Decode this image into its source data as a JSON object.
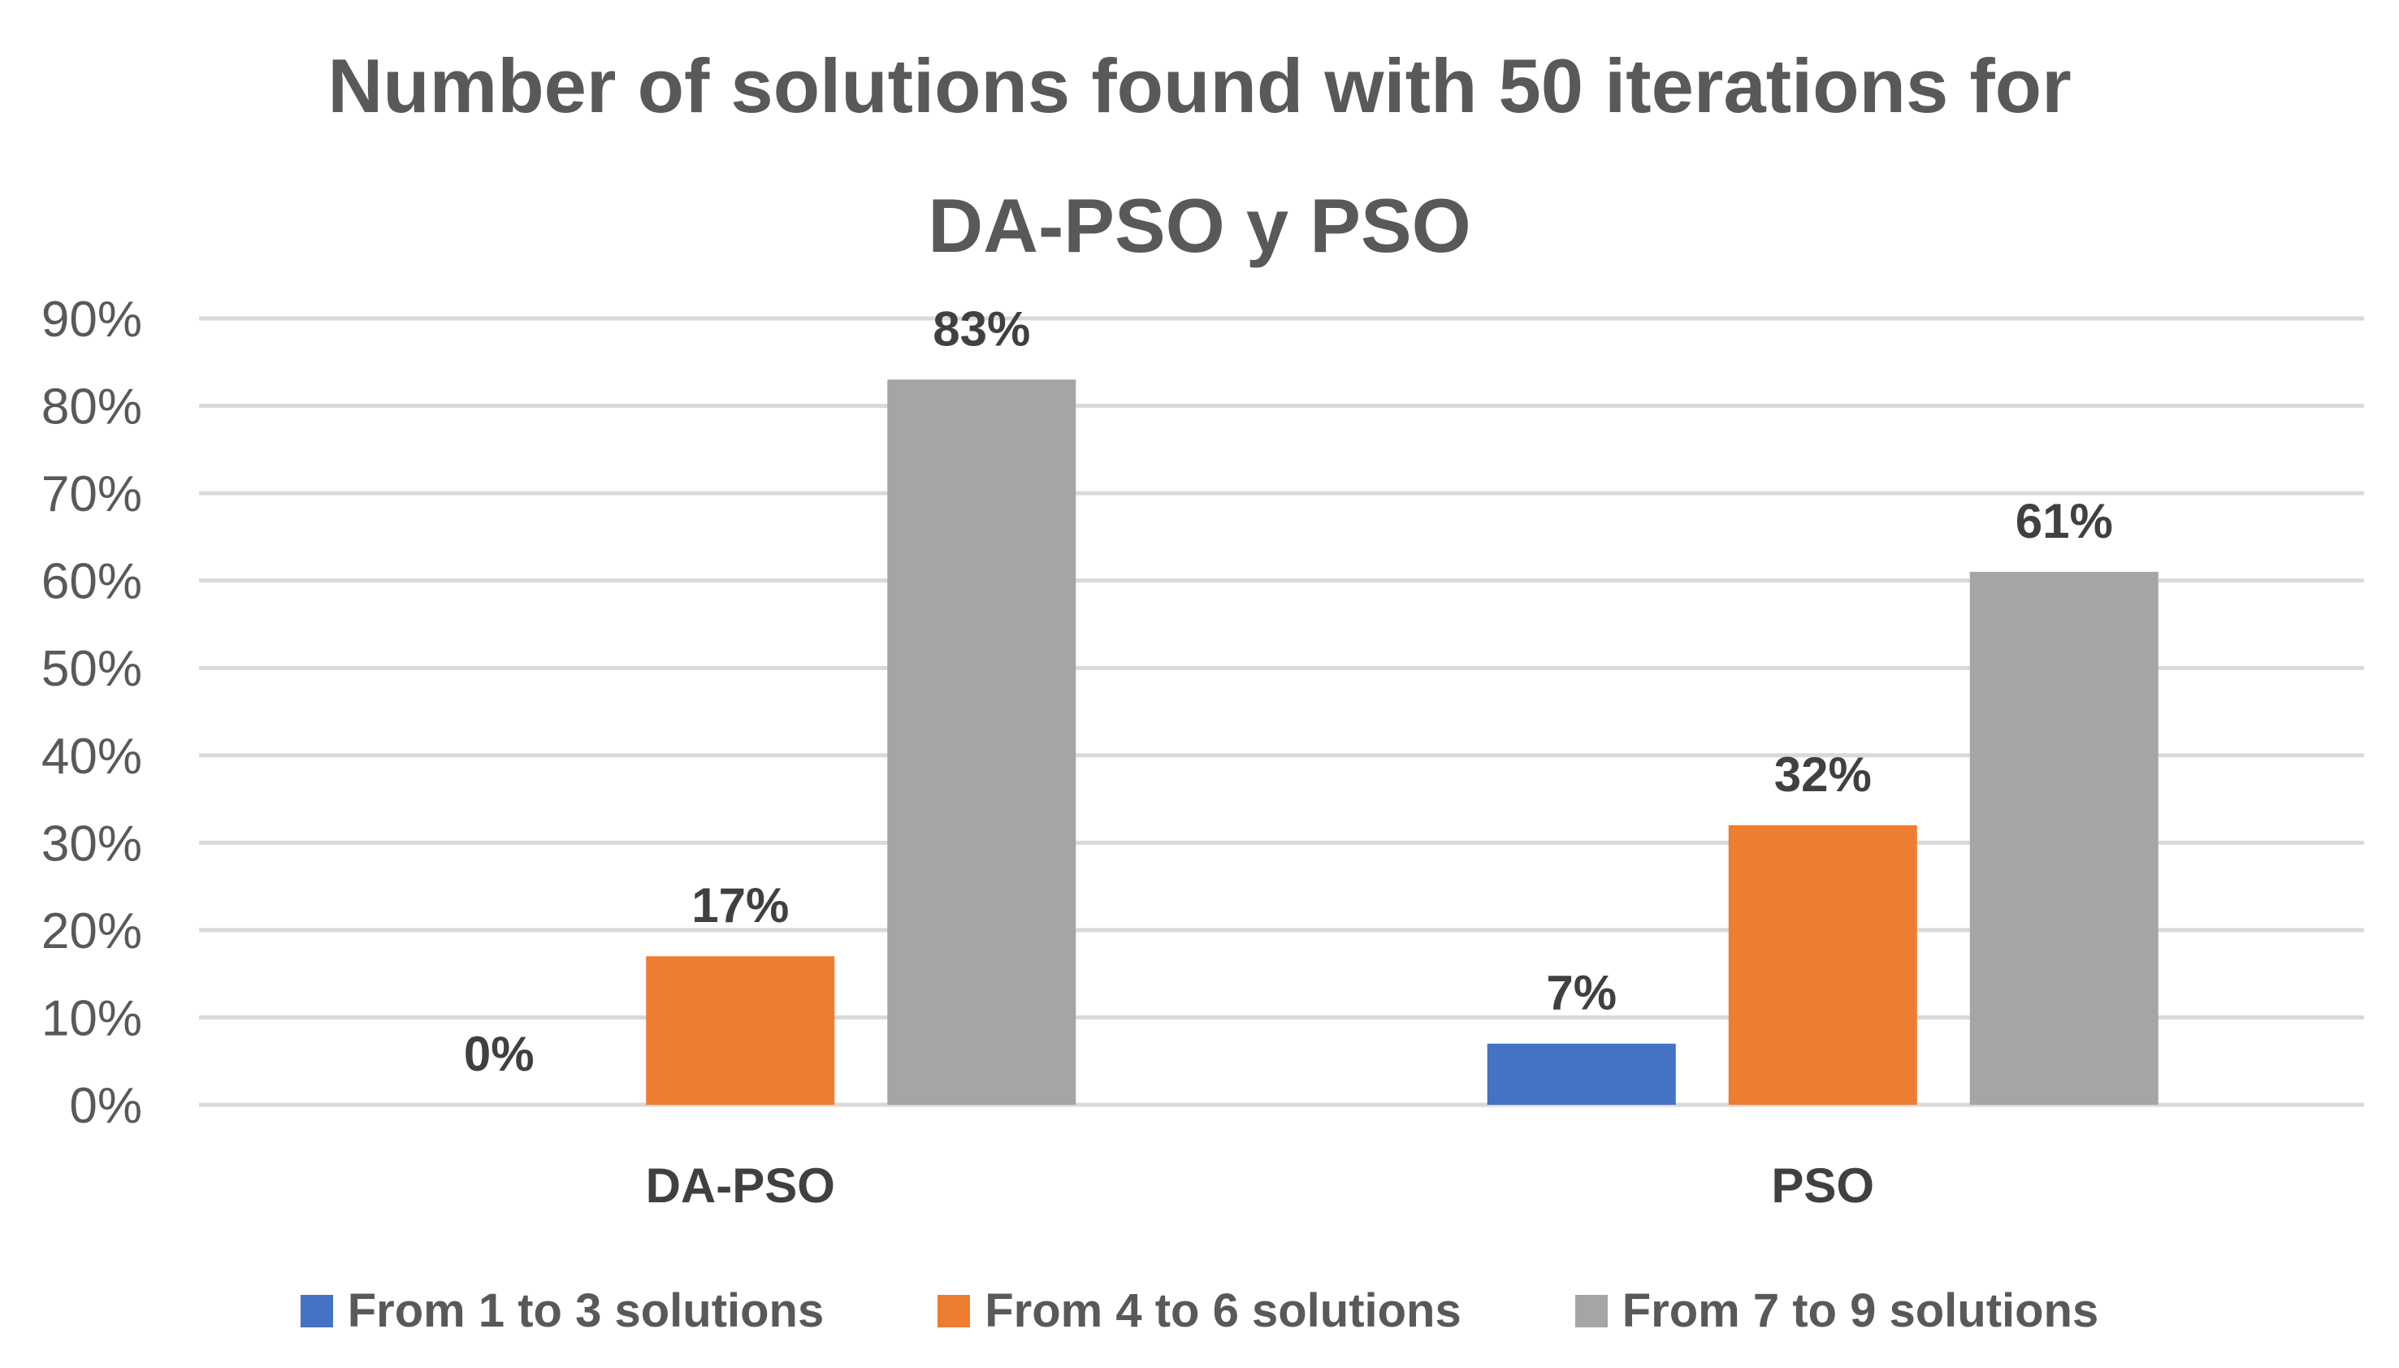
{
  "chart_data": {
    "type": "bar",
    "title": "Number of solutions found with 50 iterations for DA-PSO y PSO",
    "title_lines": [
      "Number of solutions found with 50 iterations for",
      "DA-PSO y PSO"
    ],
    "categories": [
      "DA-PSO",
      "PSO"
    ],
    "series": [
      {
        "name": "From 1 to 3 solutions",
        "values": [
          0,
          7
        ],
        "color": "#4472C4",
        "labels": [
          "0%",
          "7%"
        ]
      },
      {
        "name": "From 4 to 6 solutions",
        "values": [
          17,
          32
        ],
        "color": "#ED7D31",
        "labels": [
          "17%",
          "32%"
        ]
      },
      {
        "name": "From 7 to 9 solutions",
        "values": [
          83,
          61
        ],
        "color": "#A5A5A5",
        "labels": [
          "83%",
          "61%"
        ]
      }
    ],
    "ylim": [
      0,
      90
    ],
    "yticks": [
      0,
      10,
      20,
      30,
      40,
      50,
      60,
      70,
      80,
      90
    ],
    "ytick_labels": [
      "0%",
      "10%",
      "20%",
      "30%",
      "40%",
      "50%",
      "60%",
      "70%",
      "80%",
      "90%"
    ],
    "grid": true,
    "legend_position": "bottom"
  }
}
